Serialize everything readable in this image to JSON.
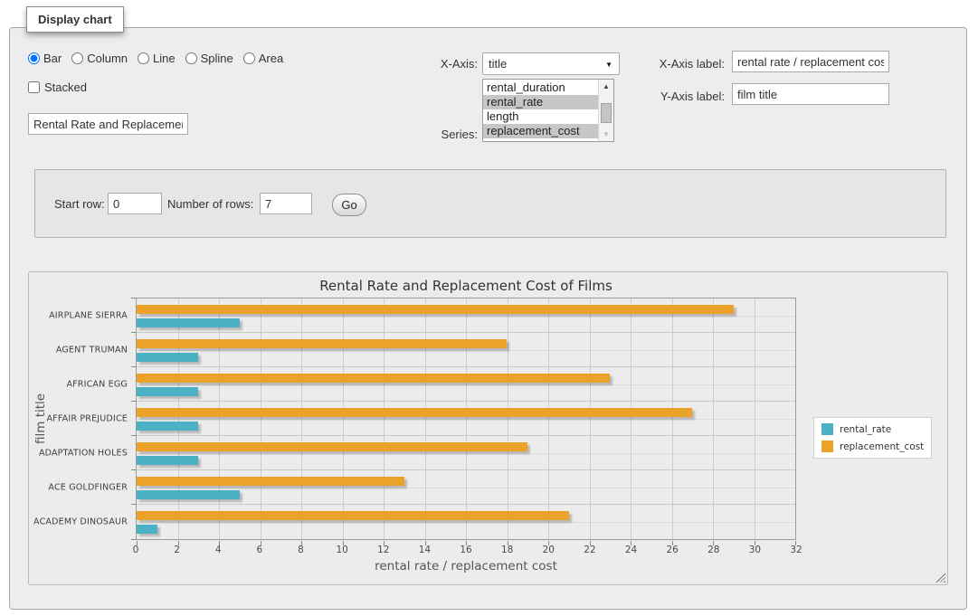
{
  "window": {
    "legend": "Display chart"
  },
  "form": {
    "chart_types": [
      {
        "label": "Bar",
        "selected": true
      },
      {
        "label": "Column",
        "selected": false
      },
      {
        "label": "Line",
        "selected": false
      },
      {
        "label": "Spline",
        "selected": false
      },
      {
        "label": "Area",
        "selected": false
      }
    ],
    "stacked": {
      "label": "Stacked",
      "checked": false
    },
    "chart_title_input": {
      "value": "Rental Rate and Replacement Cost of Films"
    },
    "x_axis": {
      "label": "X-Axis:",
      "selected": "title"
    },
    "series": {
      "label": "Series:",
      "options": [
        {
          "label": "rental_duration",
          "selected": false
        },
        {
          "label": "rental_rate",
          "selected": true
        },
        {
          "label": "length",
          "selected": false
        },
        {
          "label": "replacement_cost",
          "selected": true
        }
      ]
    },
    "x_axis_label": {
      "label": "X-Axis label:",
      "value": "rental rate / replacement cost"
    },
    "y_axis_label": {
      "label": "Y-Axis label:",
      "value": "film title"
    }
  },
  "pager": {
    "start_row": {
      "label": "Start row:",
      "value": "0"
    },
    "number_of_rows": {
      "label": "Number of rows:",
      "value": "7"
    },
    "go_label": "Go"
  },
  "chart_data": {
    "type": "bar",
    "orientation": "horizontal",
    "title": "Rental Rate and Replacement Cost of Films",
    "xlabel": "rental rate / replacement cost",
    "ylabel": "film title",
    "categories": [
      "AIRPLANE SIERRA",
      "AGENT TRUMAN",
      "AFRICAN EGG",
      "AFFAIR PREJUDICE",
      "ADAPTATION HOLES",
      "ACE GOLDFINGER",
      "ACADEMY DINOSAUR"
    ],
    "series": [
      {
        "name": "rental_rate",
        "color": "#4bb2c5",
        "values": [
          4.99,
          2.99,
          2.99,
          2.99,
          2.99,
          4.99,
          0.99
        ]
      },
      {
        "name": "replacement_cost",
        "color": "#eaa228",
        "values": [
          28.99,
          17.99,
          22.99,
          26.99,
          18.99,
          12.99,
          20.99
        ]
      }
    ],
    "xlim": [
      0,
      32
    ],
    "xticks": [
      0,
      2,
      4,
      6,
      8,
      10,
      12,
      14,
      16,
      18,
      20,
      22,
      24,
      26,
      28,
      30,
      32
    ],
    "legend_position": "right",
    "grid": true
  },
  "colors": {
    "accent_teal": "#4bb2c5",
    "accent_orange": "#eaa228",
    "panel_bg": "#ededed",
    "selection_bg": "#c6c6c6"
  }
}
